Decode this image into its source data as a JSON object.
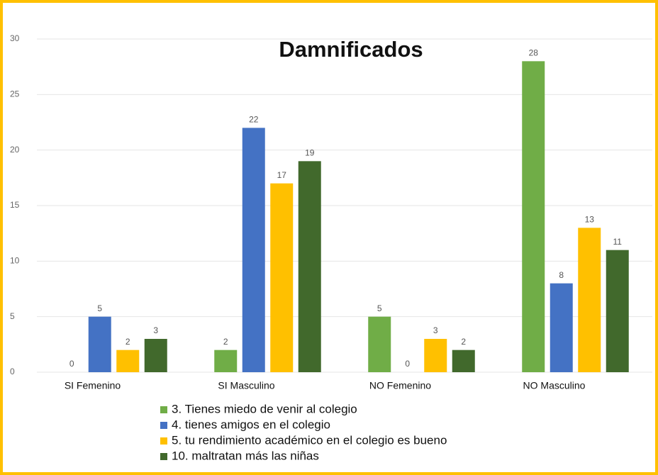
{
  "chart_data": {
    "type": "bar",
    "title": "Damnificados",
    "categories": [
      "SI Femenino",
      "SI Masculino",
      "NO Femenino",
      "NO Masculino"
    ],
    "series": [
      {
        "name": "3. Tienes miedo de venir al colegio",
        "color": "#70ad47",
        "values": [
          0,
          2,
          5,
          28
        ]
      },
      {
        "name": "4. tienes amigos en el colegio",
        "color": "#4472c4",
        "values": [
          5,
          22,
          0,
          8
        ]
      },
      {
        "name": "5. tu rendimiento académico en el colegio es bueno",
        "color": "#ffc000",
        "values": [
          2,
          17,
          3,
          13
        ]
      },
      {
        "name": "10. maltratan más las niñas",
        "color": "#41692c",
        "values": [
          3,
          19,
          2,
          11
        ]
      }
    ],
    "ylim": [
      0,
      30
    ],
    "yticks": [
      0,
      5,
      10,
      15,
      20,
      25,
      30
    ],
    "grid": true,
    "legend": "bottom"
  }
}
